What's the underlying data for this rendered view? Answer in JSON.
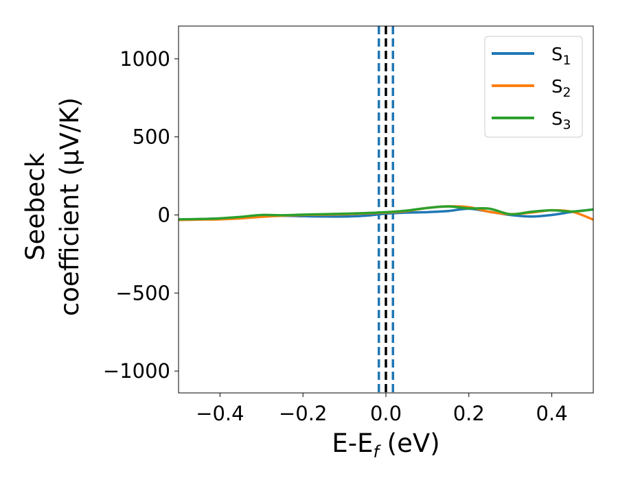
{
  "chart_data": {
    "type": "line",
    "xlabel": {
      "main": "E-E",
      "sub": "f",
      "unit": " (eV)"
    },
    "ylabel": {
      "line1": "Seebeck",
      "line2": "coefficient  (μV/K)"
    },
    "xlim": [
      -0.5,
      0.5
    ],
    "ylim": [
      -1140,
      1210
    ],
    "x_ticks": [
      -0.4,
      -0.2,
      0.0,
      0.2,
      0.4
    ],
    "x_tick_labels": [
      "−0.4",
      "−0.2",
      "0.0",
      "0.2",
      "0.4"
    ],
    "y_ticks": [
      1000,
      500,
      0,
      -500,
      -1000
    ],
    "y_tick_labels": [
      "1000",
      "500",
      "0",
      "−500",
      "−1000"
    ],
    "grid": false,
    "legend_position": "top-right",
    "vertical_lines": [
      {
        "x": -0.017,
        "color": "#1f77b4",
        "style": "dashed"
      },
      {
        "x": 0.017,
        "color": "#1f77b4",
        "style": "dashed"
      },
      {
        "x": 0.0,
        "color": "#000000",
        "style": "dashed"
      }
    ],
    "series": [
      {
        "name": "S",
        "sub": "1",
        "color": "#1f77b4",
        "x": [
          -0.5,
          -0.45,
          -0.4,
          -0.35,
          -0.3,
          -0.25,
          -0.2,
          -0.15,
          -0.1,
          -0.05,
          0.0,
          0.05,
          0.1,
          0.15,
          0.2,
          0.25,
          0.3,
          0.35,
          0.4,
          0.45,
          0.5
        ],
        "y": [
          -30,
          -27,
          -22,
          -15,
          -7,
          -5,
          -8,
          -10,
          -10,
          -5,
          8,
          15,
          18,
          25,
          40,
          20,
          0,
          -10,
          0,
          20,
          35
        ]
      },
      {
        "name": "S",
        "sub": "2",
        "color": "#ff7f0e",
        "x": [
          -0.5,
          -0.45,
          -0.4,
          -0.35,
          -0.3,
          -0.25,
          -0.2,
          -0.15,
          -0.1,
          -0.05,
          0.0,
          0.05,
          0.1,
          0.15,
          0.2,
          0.25,
          0.3,
          0.35,
          0.4,
          0.45,
          0.5
        ],
        "y": [
          -32,
          -30,
          -28,
          -22,
          -12,
          -5,
          0,
          2,
          5,
          10,
          15,
          25,
          45,
          55,
          50,
          20,
          5,
          15,
          30,
          20,
          -30
        ]
      },
      {
        "name": "S",
        "sub": "3",
        "color": "#2ca02c",
        "x": [
          -0.5,
          -0.45,
          -0.4,
          -0.35,
          -0.3,
          -0.25,
          -0.2,
          -0.15,
          -0.1,
          -0.05,
          0.0,
          0.05,
          0.1,
          0.15,
          0.2,
          0.25,
          0.3,
          0.35,
          0.4,
          0.45,
          0.5
        ],
        "y": [
          -28,
          -26,
          -22,
          -12,
          0,
          -2,
          2,
          5,
          8,
          12,
          18,
          28,
          45,
          55,
          42,
          40,
          5,
          20,
          30,
          22,
          35
        ]
      }
    ]
  }
}
